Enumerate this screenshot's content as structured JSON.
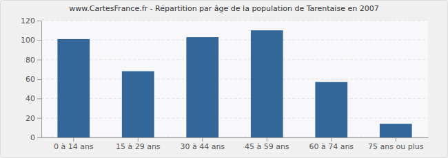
{
  "chart_data": {
    "type": "bar",
    "title": "www.CartesFrance.fr - Répartition par âge de la population de Tarentaise en 2007",
    "categories": [
      "0 à 14 ans",
      "15 à 29 ans",
      "30 à 44 ans",
      "45 à 59 ans",
      "60 à 74 ans",
      "75 ans ou plus"
    ],
    "values": [
      101,
      68,
      103,
      110,
      57,
      14
    ],
    "color": "#336699",
    "ylim": [
      0,
      120
    ],
    "yticks": [
      0,
      20,
      40,
      60,
      80,
      100,
      120
    ],
    "grid": true
  }
}
